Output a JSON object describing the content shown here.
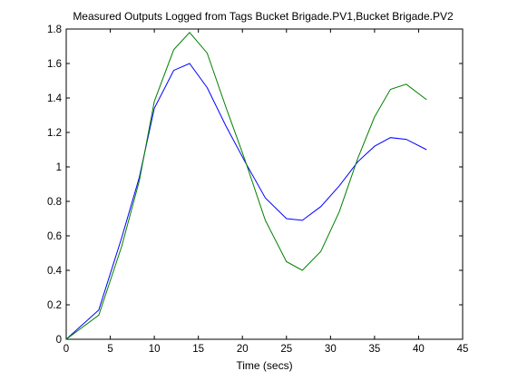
{
  "chart_data": {
    "type": "line",
    "title": "Measured Outputs Logged from Tags Bucket Brigade.PV1,Bucket Brigade.PV2",
    "xlabel": "Time (secs)",
    "ylabel": "",
    "xlim": [
      0,
      45
    ],
    "ylim": [
      0,
      1.8
    ],
    "x_ticks": [
      0,
      5,
      10,
      15,
      20,
      25,
      30,
      35,
      40,
      45
    ],
    "y_ticks": [
      0,
      0.2,
      0.4,
      0.6,
      0.8,
      1,
      1.2,
      1.4,
      1.6,
      1.8
    ],
    "x_tick_labels": [
      "0",
      "5",
      "10",
      "15",
      "20",
      "25",
      "30",
      "35",
      "40",
      "45"
    ],
    "y_tick_labels": [
      "0",
      "0.2",
      "0.4",
      "0.6",
      "0.8",
      "1",
      "1.2",
      "1.4",
      "1.6",
      "1.8"
    ],
    "grid": false,
    "legend": "none",
    "x": [
      0,
      3.7,
      6.3,
      8.3,
      10.0,
      12.2,
      14.0,
      16.0,
      18.1,
      20.3,
      22.6,
      25.0,
      26.8,
      28.9,
      31.0,
      33.1,
      35.0,
      36.8,
      38.6,
      40.9
    ],
    "series": [
      {
        "color": "#0000ff",
        "values": [
          0,
          0.17,
          0.59,
          0.94,
          1.34,
          1.56,
          1.6,
          1.46,
          1.24,
          1.03,
          0.82,
          0.7,
          0.69,
          0.77,
          0.89,
          1.03,
          1.12,
          1.17,
          1.16,
          1.1
        ]
      },
      {
        "color": "#008000",
        "values": [
          0,
          0.14,
          0.54,
          0.92,
          1.38,
          1.68,
          1.78,
          1.66,
          1.35,
          1.04,
          0.69,
          0.45,
          0.4,
          0.51,
          0.74,
          1.05,
          1.29,
          1.45,
          1.48,
          1.39
        ]
      }
    ]
  }
}
